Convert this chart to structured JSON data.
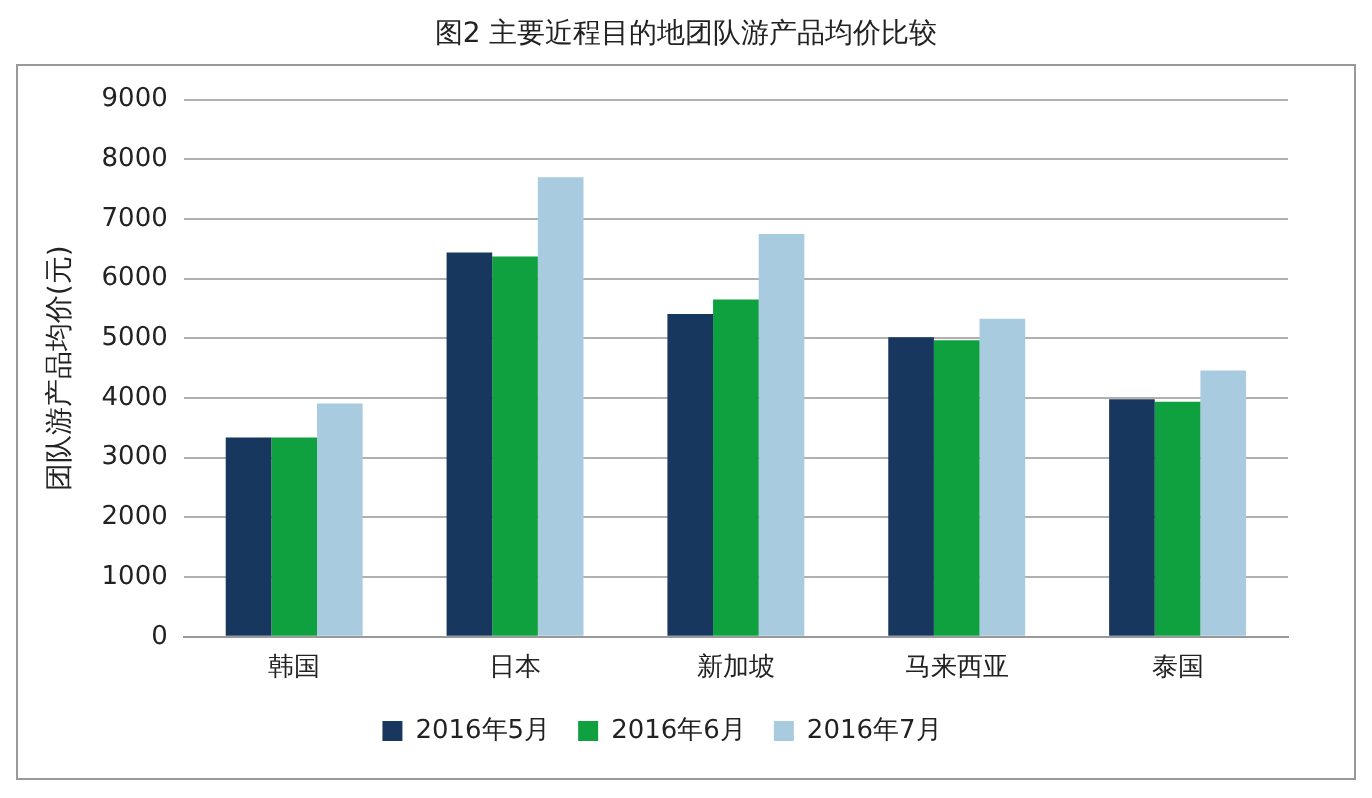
{
  "chart_data": {
    "type": "bar",
    "title": "图2 主要近程目的地团队游产品均价比较",
    "ylabel": "团队游产品均价(元)",
    "categories": [
      "韩国",
      "日本",
      "新加坡",
      "马来西亚",
      "泰国"
    ],
    "series": [
      {
        "name": "2016年5月",
        "color": "#17375e",
        "values": [
          3340,
          6440,
          5410,
          5020,
          3980
        ]
      },
      {
        "name": "2016年6月",
        "color": "#0fa040",
        "values": [
          3340,
          6370,
          5650,
          4970,
          3940
        ]
      },
      {
        "name": "2016年7月",
        "color": "#a9cbe0",
        "values": [
          3910,
          7700,
          6750,
          5330,
          4460
        ]
      }
    ],
    "ylim": [
      0,
      9000
    ],
    "yticks": [
      0,
      1000,
      2000,
      3000,
      4000,
      5000,
      6000,
      7000,
      8000,
      9000
    ],
    "grid": "y",
    "legend": "bottom"
  }
}
